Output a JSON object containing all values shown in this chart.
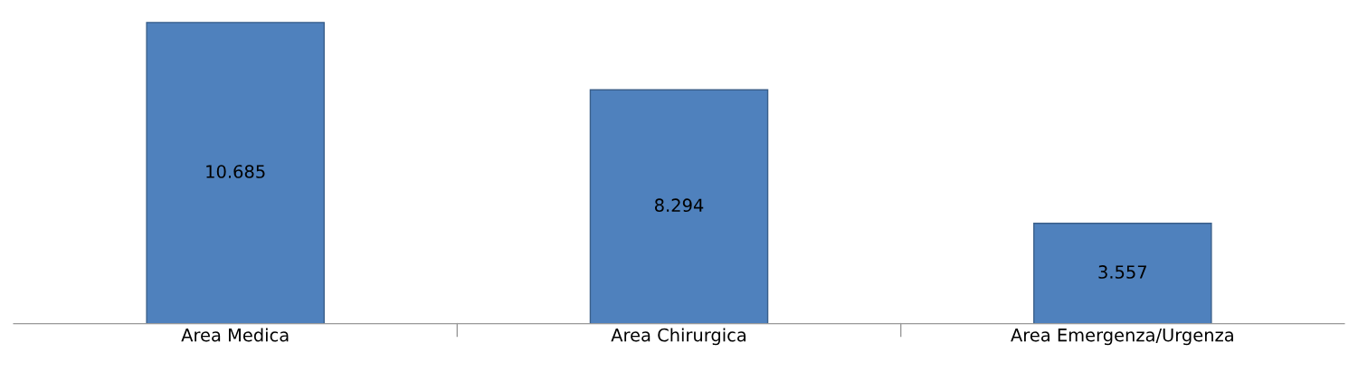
{
  "chart_data": {
    "type": "bar",
    "categories": [
      "Area Medica",
      "Area Chirurgica",
      "Area Emergenza/Urgenza"
    ],
    "values": [
      10685,
      8294,
      3557
    ],
    "value_labels": [
      "10.685",
      "8.294",
      "3.557"
    ],
    "color": "#4f81bd",
    "grid": false,
    "legend": false
  }
}
